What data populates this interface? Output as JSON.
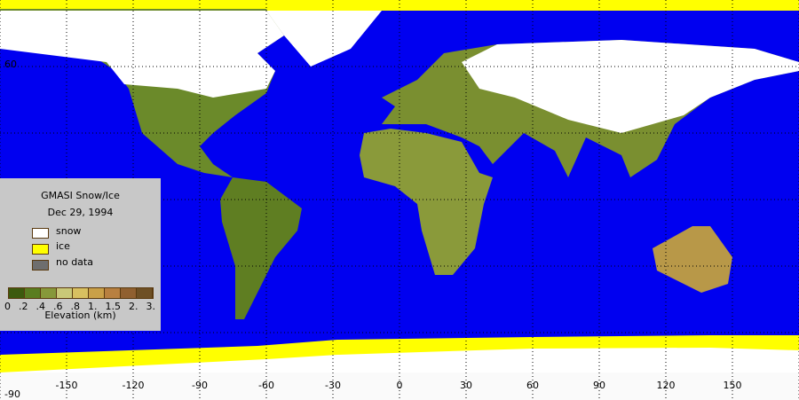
{
  "map": {
    "projection": "equirectangular",
    "lon_range": [
      -180,
      180
    ],
    "lat_range": [
      -90,
      90
    ],
    "grid": "dotted every 30 degrees",
    "lon_ticks": [
      "-150",
      "-120",
      "-90",
      "-60",
      "-30",
      "0",
      "30",
      "60",
      "90",
      "120",
      "150"
    ],
    "lat_ticks": [
      "60",
      "-90"
    ],
    "colors": {
      "ocean": "#0000f0",
      "snow": "#ffffff",
      "ice": "#ffff00",
      "no_data": "#6e6e6e",
      "background": "#fafafa"
    }
  },
  "legend": {
    "title": "GMASI Snow/Ice",
    "date": "Dec 29, 1994",
    "items": [
      {
        "label": "snow",
        "color": "#ffffff"
      },
      {
        "label": "ice",
        "color": "#ffff00"
      },
      {
        "label": "no data",
        "color": "#6e6e6e"
      }
    ],
    "colorbar": {
      "colors": [
        "#3d5a0e",
        "#5a7d20",
        "#87983a",
        "#c9c878",
        "#d8c060",
        "#c9a048",
        "#b88040",
        "#906030",
        "#6e5025"
      ],
      "tick_labels": [
        "0",
        ".2",
        ".4",
        ".6",
        ".8",
        "1.",
        "1.5",
        "2.",
        "3."
      ],
      "label": "Elevation (km)"
    }
  }
}
